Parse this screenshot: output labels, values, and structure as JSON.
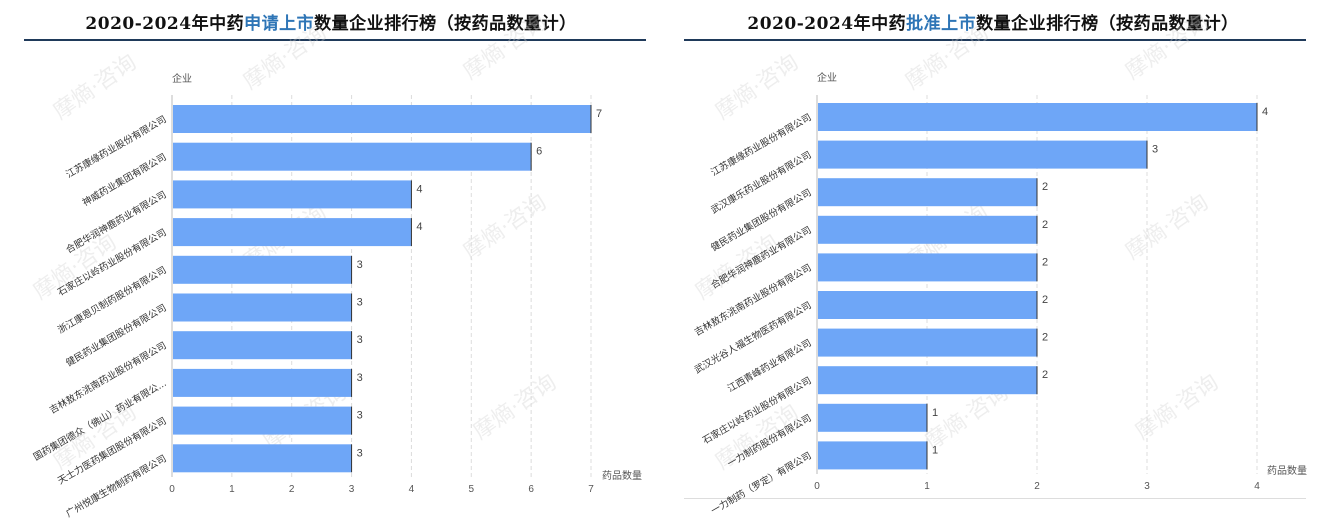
{
  "left": {
    "title_pre": "2020-2024年中药",
    "title_hl": "申请上市",
    "title_post": "数量企业排行榜（按药品数量计）"
  },
  "right": {
    "title_pre": "2020-2024年中药",
    "title_hl": "批准上市",
    "title_post": "数量企业排行榜（按药品数量计）"
  },
  "watermark": "摩熵·咨询",
  "colors": {
    "bar": "#6ea6f7",
    "title_highlight": "#2e75b6",
    "rule": "#1f3a5a"
  },
  "chart_data": [
    {
      "type": "bar",
      "orientation": "horizontal",
      "ylabel": "企业",
      "xlabel": "药品数量",
      "xlim": [
        0,
        7
      ],
      "xticks": [
        "0",
        "1",
        "2",
        "3",
        "4",
        "5",
        "6",
        "7"
      ],
      "categories": [
        "江苏康缘药业股份有限公司",
        "神威药业集团有限公司",
        "合肥华润神鹿药业有限公司",
        "石家庄以岭药业股份有限公司",
        "浙江康恩贝制药股份有限公司",
        "健民药业集团股份有限公司",
        "吉林敖东洮南药业股份有限公司",
        "国药集团德众（佛山）药业有限公...",
        "天士力医药集团股份有限公司",
        "广州悦康生物制药有限公司"
      ],
      "values": [
        7,
        6,
        4,
        4,
        3,
        3,
        3,
        3,
        3,
        3
      ],
      "grid": "vertical dashed"
    },
    {
      "type": "bar",
      "orientation": "horizontal",
      "ylabel": "企业",
      "xlabel": "药品数量",
      "xlim": [
        0,
        4
      ],
      "xticks": [
        "0",
        "1",
        "2",
        "3",
        "4"
      ],
      "categories": [
        "江苏康缘药业股份有限公司",
        "武汉康乐药业股份有限公司",
        "健民药业集团股份有限公司",
        "合肥华润神鹿药业有限公司",
        "吉林敖东洮南药业股份有限公司",
        "武汉光谷人福生物医药有限公司",
        "江西青峰药业有限公司",
        "石家庄以岭药业股份有限公司",
        "一力制药股份有限公司",
        "一力制药（罗定）有限公司"
      ],
      "values": [
        4,
        3,
        2,
        2,
        2,
        2,
        2,
        2,
        1,
        1
      ],
      "grid": "vertical dashed"
    }
  ]
}
